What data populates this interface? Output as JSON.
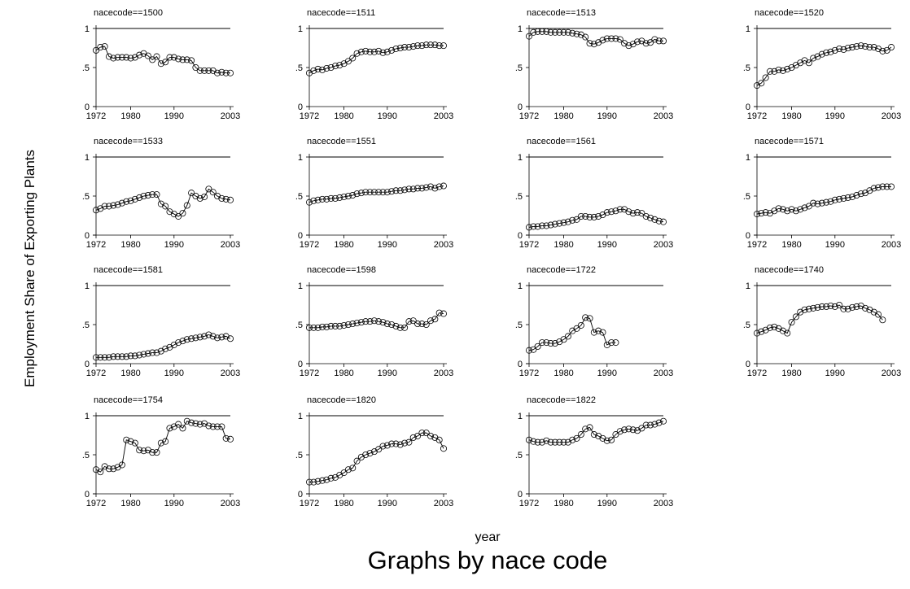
{
  "figure": {
    "ylabel": "Employment Share of Exporting Plants",
    "xlabel": "year",
    "note": "Graphs by nace code"
  },
  "chart_data": {
    "type": "line",
    "layout": "small-multiples",
    "xticks": [
      1972,
      1980,
      1990,
      2003
    ],
    "xlim": [
      1972,
      2003
    ],
    "yticks": [
      0,
      0.5,
      1
    ],
    "ytick_labels": [
      "0",
      ".5",
      "1"
    ],
    "ylim": [
      0,
      1
    ],
    "reference_line": 1,
    "panels": [
      {
        "title": "nacecode==1500",
        "x_start": 1972,
        "values": [
          0.72,
          0.76,
          0.77,
          0.64,
          0.62,
          0.63,
          0.63,
          0.63,
          0.62,
          0.63,
          0.66,
          0.68,
          0.65,
          0.6,
          0.64,
          0.55,
          0.57,
          0.63,
          0.63,
          0.61,
          0.6,
          0.6,
          0.59,
          0.5,
          0.46,
          0.46,
          0.46,
          0.46,
          0.43,
          0.44,
          0.43,
          0.43
        ]
      },
      {
        "title": "nacecode==1511",
        "x_start": 1972,
        "values": [
          0.43,
          0.46,
          0.48,
          0.47,
          0.49,
          0.5,
          0.52,
          0.53,
          0.55,
          0.58,
          0.62,
          0.68,
          0.7,
          0.71,
          0.7,
          0.7,
          0.71,
          0.69,
          0.7,
          0.72,
          0.74,
          0.75,
          0.76,
          0.76,
          0.77,
          0.78,
          0.78,
          0.79,
          0.79,
          0.79,
          0.78,
          0.78
        ]
      },
      {
        "title": "nacecode==1513",
        "x_start": 1972,
        "values": [
          0.9,
          0.95,
          0.96,
          0.96,
          0.96,
          0.95,
          0.95,
          0.95,
          0.95,
          0.95,
          0.94,
          0.93,
          0.92,
          0.89,
          0.81,
          0.8,
          0.82,
          0.85,
          0.87,
          0.87,
          0.87,
          0.86,
          0.81,
          0.78,
          0.8,
          0.83,
          0.84,
          0.81,
          0.82,
          0.86,
          0.84,
          0.84
        ]
      },
      {
        "title": "nacecode==1520",
        "x_start": 1972,
        "values": [
          0.27,
          0.3,
          0.37,
          0.45,
          0.45,
          0.47,
          0.46,
          0.48,
          0.5,
          0.53,
          0.56,
          0.59,
          0.56,
          0.62,
          0.64,
          0.67,
          0.69,
          0.7,
          0.72,
          0.74,
          0.73,
          0.75,
          0.76,
          0.77,
          0.78,
          0.77,
          0.76,
          0.76,
          0.74,
          0.71,
          0.72,
          0.76
        ]
      },
      {
        "title": "nacecode==1533",
        "x_start": 1972,
        "values": [
          0.32,
          0.34,
          0.37,
          0.37,
          0.38,
          0.39,
          0.41,
          0.43,
          0.44,
          0.46,
          0.48,
          0.5,
          0.51,
          0.52,
          0.52,
          0.4,
          0.37,
          0.3,
          0.27,
          0.24,
          0.28,
          0.38,
          0.54,
          0.5,
          0.47,
          0.49,
          0.59,
          0.55,
          0.5,
          0.47,
          0.46,
          0.45
        ]
      },
      {
        "title": "nacecode==1551",
        "x_start": 1972,
        "values": [
          0.42,
          0.44,
          0.45,
          0.46,
          0.46,
          0.47,
          0.47,
          0.48,
          0.49,
          0.5,
          0.51,
          0.53,
          0.54,
          0.55,
          0.55,
          0.55,
          0.55,
          0.55,
          0.55,
          0.56,
          0.57,
          0.57,
          0.58,
          0.59,
          0.59,
          0.6,
          0.6,
          0.61,
          0.62,
          0.6,
          0.62,
          0.63
        ]
      },
      {
        "title": "nacecode==1561",
        "x_start": 1972,
        "values": [
          0.1,
          0.11,
          0.11,
          0.12,
          0.12,
          0.13,
          0.14,
          0.15,
          0.16,
          0.17,
          0.19,
          0.2,
          0.24,
          0.24,
          0.23,
          0.23,
          0.24,
          0.26,
          0.29,
          0.3,
          0.31,
          0.33,
          0.33,
          0.3,
          0.28,
          0.29,
          0.28,
          0.24,
          0.22,
          0.2,
          0.18,
          0.17
        ]
      },
      {
        "title": "nacecode==1571",
        "x_start": 1972,
        "values": [
          0.27,
          0.28,
          0.29,
          0.28,
          0.31,
          0.34,
          0.33,
          0.31,
          0.33,
          0.31,
          0.33,
          0.35,
          0.37,
          0.41,
          0.4,
          0.41,
          0.42,
          0.43,
          0.45,
          0.46,
          0.47,
          0.48,
          0.49,
          0.51,
          0.53,
          0.54,
          0.57,
          0.6,
          0.61,
          0.62,
          0.62,
          0.62
        ]
      },
      {
        "title": "nacecode==1581",
        "x_start": 1972,
        "values": [
          0.08,
          0.08,
          0.08,
          0.08,
          0.09,
          0.09,
          0.09,
          0.09,
          0.1,
          0.1,
          0.11,
          0.12,
          0.13,
          0.14,
          0.14,
          0.16,
          0.19,
          0.21,
          0.24,
          0.27,
          0.29,
          0.31,
          0.32,
          0.33,
          0.34,
          0.35,
          0.37,
          0.35,
          0.33,
          0.34,
          0.35,
          0.32
        ]
      },
      {
        "title": "nacecode==1598",
        "x_start": 1972,
        "values": [
          0.46,
          0.46,
          0.46,
          0.47,
          0.47,
          0.48,
          0.48,
          0.48,
          0.49,
          0.5,
          0.51,
          0.52,
          0.53,
          0.54,
          0.54,
          0.55,
          0.54,
          0.53,
          0.51,
          0.5,
          0.48,
          0.46,
          0.46,
          0.54,
          0.55,
          0.51,
          0.51,
          0.5,
          0.55,
          0.57,
          0.65,
          0.64
        ]
      },
      {
        "title": "nacecode==1722",
        "x_start": 1972,
        "values": [
          0.17,
          0.18,
          0.22,
          0.27,
          0.27,
          0.26,
          0.26,
          0.28,
          0.31,
          0.35,
          0.42,
          0.45,
          0.49,
          0.59,
          0.58,
          0.4,
          0.42,
          0.4,
          0.24,
          0.27,
          0.27
        ]
      },
      {
        "title": "nacecode==1740",
        "x_start": 1972,
        "values": [
          0.39,
          0.41,
          0.43,
          0.46,
          0.47,
          0.45,
          0.42,
          0.39,
          0.53,
          0.6,
          0.66,
          0.69,
          0.7,
          0.71,
          0.72,
          0.73,
          0.73,
          0.74,
          0.73,
          0.75,
          0.7,
          0.7,
          0.72,
          0.73,
          0.74,
          0.71,
          0.69,
          0.66,
          0.63,
          0.56
        ]
      },
      {
        "title": "nacecode==1754",
        "x_start": 1972,
        "values": [
          0.31,
          0.28,
          0.35,
          0.32,
          0.32,
          0.34,
          0.37,
          0.69,
          0.67,
          0.65,
          0.56,
          0.55,
          0.56,
          0.53,
          0.53,
          0.65,
          0.67,
          0.84,
          0.86,
          0.89,
          0.84,
          0.93,
          0.91,
          0.9,
          0.89,
          0.9,
          0.87,
          0.86,
          0.86,
          0.86,
          0.71,
          0.7
        ]
      },
      {
        "title": "nacecode==1820",
        "x_start": 1972,
        "values": [
          0.15,
          0.15,
          0.16,
          0.17,
          0.18,
          0.2,
          0.21,
          0.24,
          0.27,
          0.31,
          0.33,
          0.42,
          0.47,
          0.5,
          0.52,
          0.54,
          0.57,
          0.61,
          0.62,
          0.64,
          0.64,
          0.63,
          0.65,
          0.66,
          0.72,
          0.74,
          0.78,
          0.78,
          0.74,
          0.72,
          0.69,
          0.58
        ]
      },
      {
        "title": "nacecode==1822",
        "x_start": 1972,
        "values": [
          0.69,
          0.67,
          0.66,
          0.66,
          0.68,
          0.66,
          0.66,
          0.66,
          0.66,
          0.66,
          0.69,
          0.71,
          0.76,
          0.83,
          0.85,
          0.76,
          0.74,
          0.71,
          0.68,
          0.69,
          0.76,
          0.8,
          0.82,
          0.83,
          0.82,
          0.81,
          0.84,
          0.88,
          0.88,
          0.89,
          0.91,
          0.93
        ]
      }
    ]
  }
}
